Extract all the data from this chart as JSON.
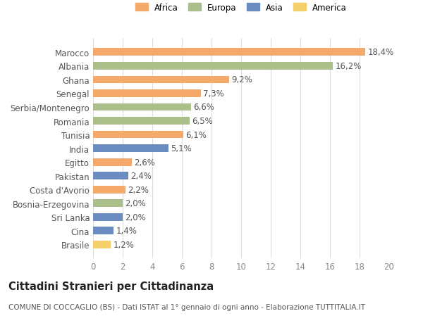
{
  "title": "Cittadini Stranieri per Cittadinanza",
  "subtitle": "COMUNE DI COCCAGLIO (BS) - Dati ISTAT al 1° gennaio di ogni anno - Elaborazione TUTTITALIA.IT",
  "categories": [
    "Brasile",
    "Cina",
    "Sri Lanka",
    "Bosnia-Erzegovina",
    "Costa d'Avorio",
    "Pakistan",
    "Egitto",
    "India",
    "Tunisia",
    "Romania",
    "Serbia/Montenegro",
    "Senegal",
    "Ghana",
    "Albania",
    "Marocco"
  ],
  "values": [
    1.2,
    1.4,
    2.0,
    2.0,
    2.2,
    2.4,
    2.6,
    5.1,
    6.1,
    6.5,
    6.6,
    7.3,
    9.2,
    16.2,
    18.4
  ],
  "continents": [
    "America",
    "Asia",
    "Asia",
    "Europa",
    "Africa",
    "Asia",
    "Africa",
    "Asia",
    "Africa",
    "Europa",
    "Europa",
    "Africa",
    "Africa",
    "Europa",
    "Africa"
  ],
  "colors": {
    "Africa": "#F4A96A",
    "Europa": "#AABF8A",
    "Asia": "#6B8CBE",
    "America": "#F5D06A"
  },
  "legend_order": [
    "Africa",
    "Europa",
    "Asia",
    "America"
  ],
  "xlim": [
    0,
    20
  ],
  "xticks": [
    0,
    2,
    4,
    6,
    8,
    10,
    12,
    14,
    16,
    18,
    20
  ],
  "bar_height": 0.55,
  "background_color": "#ffffff",
  "grid_color": "#dddddd",
  "label_fontsize": 8.5,
  "value_fontsize": 8.5,
  "title_fontsize": 10.5,
  "subtitle_fontsize": 7.5,
  "tick_color": "#888888"
}
